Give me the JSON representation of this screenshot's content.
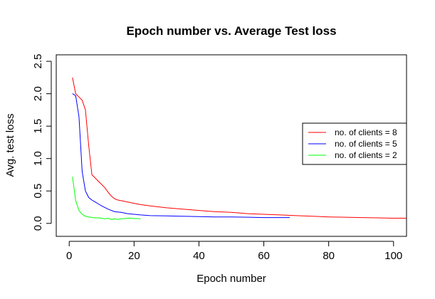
{
  "chart_data": {
    "type": "line",
    "title": "Epoch number vs. Average Test loss",
    "xlabel": "Epoch number",
    "ylabel": "Avg. test loss",
    "xlim": [
      -4,
      104
    ],
    "ylim": [
      -0.2,
      2.6
    ],
    "xticks": [
      0,
      20,
      40,
      60,
      80,
      100
    ],
    "yticks": [
      0.0,
      0.5,
      1.0,
      1.5,
      2.0,
      2.5
    ],
    "xtick_labels": [
      "0",
      "20",
      "40",
      "60",
      "80",
      "100"
    ],
    "ytick_labels": [
      "0.0",
      "0.5",
      "1.0",
      "1.5",
      "2.0",
      "2.5"
    ],
    "grid": false,
    "legend_position": "right",
    "series": [
      {
        "name": "no. of clients = 8",
        "color": "#ff0000",
        "x": [
          1,
          2,
          3,
          4,
          5,
          6,
          7,
          8,
          9,
          10,
          11,
          12,
          13,
          14,
          15,
          16,
          18,
          20,
          22,
          25,
          30,
          35,
          40,
          45,
          50,
          55,
          60,
          65,
          70,
          75,
          80,
          85,
          90,
          95,
          100,
          104
        ],
        "y": [
          2.25,
          2.0,
          1.95,
          1.9,
          1.75,
          1.2,
          0.75,
          0.7,
          0.65,
          0.6,
          0.55,
          0.48,
          0.42,
          0.38,
          0.36,
          0.35,
          0.33,
          0.31,
          0.29,
          0.27,
          0.24,
          0.22,
          0.2,
          0.18,
          0.17,
          0.15,
          0.14,
          0.13,
          0.12,
          0.11,
          0.1,
          0.095,
          0.09,
          0.085,
          0.08,
          0.08
        ]
      },
      {
        "name": "no. of clients = 5",
        "color": "#0000ff",
        "x": [
          1,
          2,
          3,
          4,
          5,
          6,
          7,
          8,
          9,
          10,
          12,
          14,
          16,
          18,
          20,
          22,
          25,
          30,
          35,
          40,
          45,
          50,
          55,
          60,
          65,
          68
        ],
        "y": [
          2.0,
          1.97,
          1.65,
          0.8,
          0.5,
          0.4,
          0.36,
          0.33,
          0.3,
          0.27,
          0.22,
          0.18,
          0.17,
          0.15,
          0.14,
          0.13,
          0.12,
          0.115,
          0.11,
          0.105,
          0.1,
          0.1,
          0.095,
          0.09,
          0.09,
          0.09
        ]
      },
      {
        "name": "no. of clients = 2",
        "color": "#00ff00",
        "x": [
          1,
          2,
          3,
          4,
          5,
          6,
          7,
          8,
          9,
          10,
          11,
          12,
          13,
          14,
          15,
          16,
          17,
          18,
          19,
          20,
          21,
          22
        ],
        "y": [
          0.72,
          0.35,
          0.2,
          0.14,
          0.11,
          0.1,
          0.09,
          0.085,
          0.085,
          0.08,
          0.07,
          0.08,
          0.06,
          0.07,
          0.06,
          0.07,
          0.075,
          0.08,
          0.08,
          0.075,
          0.075,
          0.07
        ]
      }
    ]
  }
}
